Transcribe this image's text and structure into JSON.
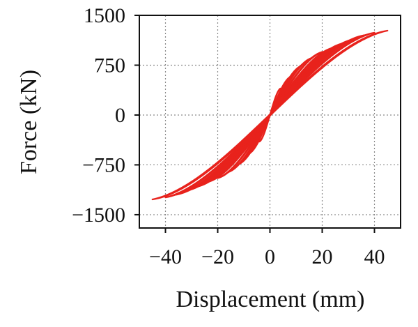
{
  "chart_data": {
    "type": "line",
    "title": "",
    "xlabel": "Displacement (mm)",
    "ylabel": "Force (kN)",
    "xlim": [
      -50,
      50
    ],
    "ylim": [
      -1700,
      1500
    ],
    "x_ticks": [
      -40,
      -20,
      0,
      20,
      40
    ],
    "x_tick_labels": [
      "−40",
      "−20",
      "0",
      "20",
      "40"
    ],
    "y_ticks": [
      1500,
      750,
      0,
      -750,
      -1500
    ],
    "y_tick_labels": [
      "1500",
      "750",
      "0",
      "−750",
      "−1500"
    ],
    "grid": true,
    "legend": "none",
    "line_color": "#e8221c",
    "series": [
      {
        "values": [
          [
            4,
            400
          ],
          [
            -4,
            -400
          ]
        ]
      },
      {
        "values": [
          [
            8,
            580
          ],
          [
            -8,
            -580
          ]
        ]
      },
      {
        "values": [
          [
            12,
            740
          ],
          [
            -12,
            -740
          ]
        ]
      },
      {
        "values": [
          [
            16,
            860
          ],
          [
            -16,
            -860
          ]
        ]
      },
      {
        "values": [
          [
            20,
            950
          ],
          [
            -20,
            -950
          ]
        ]
      },
      {
        "values": [
          [
            24,
            1010
          ],
          [
            -24,
            -1010
          ]
        ]
      },
      {
        "values": [
          [
            28,
            1080
          ],
          [
            -28,
            -1080
          ]
        ]
      },
      {
        "values": [
          [
            32,
            1140
          ],
          [
            -32,
            -1140
          ]
        ]
      },
      {
        "values": [
          [
            36,
            1200
          ],
          [
            -36,
            -1200
          ]
        ]
      },
      {
        "values": [
          [
            40,
            1240
          ],
          [
            -40,
            -1240
          ]
        ]
      },
      {
        "values": [
          [
            45,
            1270
          ],
          [
            -45,
            -1270
          ]
        ]
      }
    ]
  }
}
